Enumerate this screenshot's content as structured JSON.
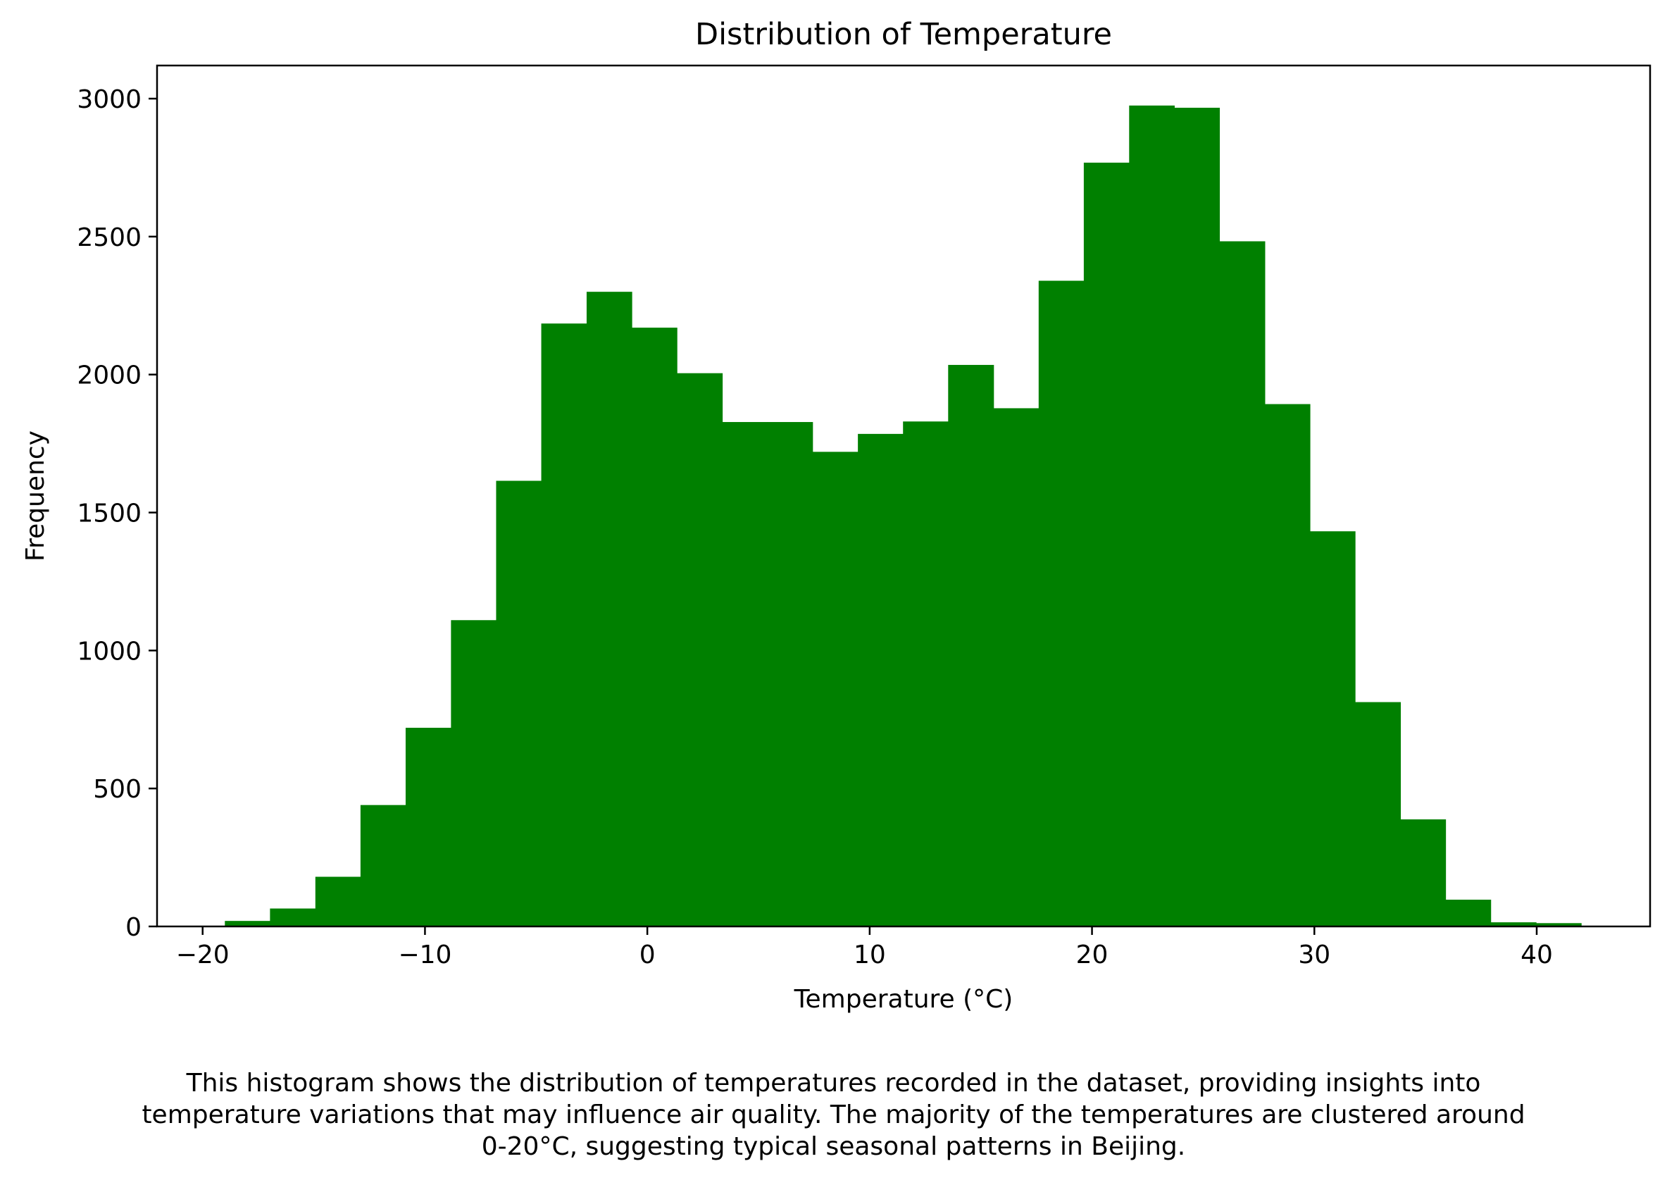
{
  "chart_data": {
    "type": "bar",
    "title": "Distribution of Temperature",
    "xlabel": "Temperature (°C)",
    "ylabel": "Frequency",
    "bar_color": "#008000",
    "xlim": [
      -22.05,
      45.1
    ],
    "ylim": [
      0,
      3120
    ],
    "x_ticks": [
      -20,
      -10,
      0,
      10,
      20,
      30,
      40
    ],
    "x_tick_labels": [
      "−20",
      "−10",
      "0",
      "10",
      "20",
      "30",
      "40"
    ],
    "y_ticks": [
      0,
      500,
      1000,
      1500,
      2000,
      2500,
      3000
    ],
    "y_tick_labels": [
      "0",
      "500",
      "1000",
      "1500",
      "2000",
      "2500",
      "3000"
    ],
    "grid": false,
    "bin_edges": [
      -19,
      -16.97,
      -14.93,
      -12.9,
      -10.87,
      -8.83,
      -6.8,
      -4.77,
      -2.73,
      -0.7,
      1.33,
      3.37,
      5.4,
      7.43,
      9.47,
      11.5,
      13.53,
      15.57,
      17.6,
      19.63,
      21.67,
      23.7,
      25.73,
      27.77,
      29.8,
      31.83,
      33.87,
      35.9,
      37.93,
      39.97,
      42
    ],
    "values": [
      20,
      65,
      180,
      440,
      720,
      1110,
      1615,
      2185,
      2300,
      2170,
      2005,
      1828,
      1828,
      1720,
      1785,
      1830,
      2035,
      1878,
      2340,
      2768,
      2975,
      2967,
      2483,
      1893,
      1432,
      813,
      388,
      97,
      15,
      12
    ]
  },
  "caption": {
    "lines": [
      "This histogram shows the distribution of temperatures recorded in the dataset, providing insights into",
      "temperature variations that may influence air quality. The majority of the temperatures are clustered around",
      "0-20°C, suggesting typical seasonal patterns in Beijing."
    ]
  }
}
